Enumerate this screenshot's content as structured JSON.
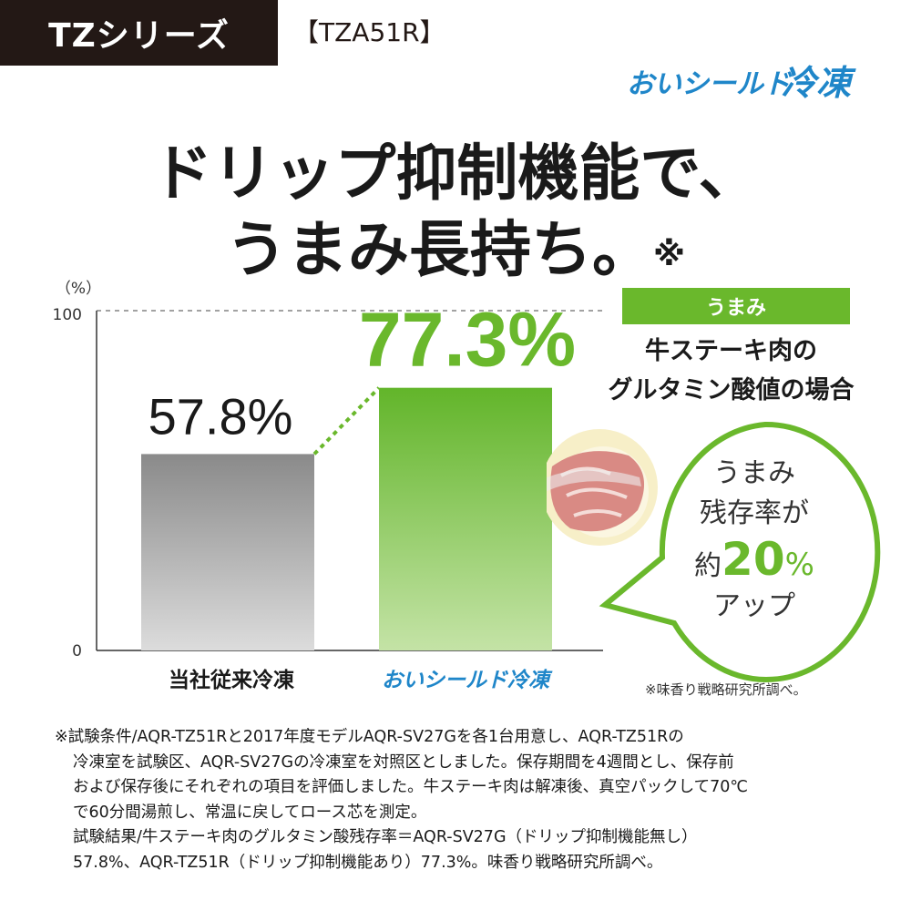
{
  "header": {
    "series_label": "TZシリーズ",
    "model_label": "【TZA51R】"
  },
  "brand": {
    "logo_text_left": "おいシールド",
    "logo_text_right": "冷凍",
    "logo_color": "#1f86c9"
  },
  "headline": {
    "line1": "ドリップ抑制機能で、",
    "line2": "うまみ長持ち。",
    "note_mark": "※"
  },
  "chart_data": {
    "type": "bar",
    "categories": [
      "当社従来冷凍",
      "おいシールド冷凍"
    ],
    "values": [
      57.8,
      77.3
    ],
    "data_labels": [
      "57.8%",
      "77.3%"
    ],
    "ylabel": "（%）",
    "ylim": [
      0,
      100
    ],
    "yticks": [
      "0",
      "100"
    ],
    "grid": false,
    "colors": [
      "#8c8c8c",
      "#6ab82c"
    ]
  },
  "umami": {
    "tag": "うまみ",
    "desc_line1": "牛ステーキ肉の",
    "desc_line2": "グルタミン酸値の場合"
  },
  "callout": {
    "line1": "うまみ",
    "line2": "残存率が",
    "prefix": "約",
    "value": "20",
    "unit": "%",
    "line4": "アップ",
    "border_color": "#6ab82c"
  },
  "source_note": "※味香り戦略研究所調べ。",
  "footnote": {
    "line1": "※試験条件/AQR-TZ51Rと2017年度モデルAQR-SV27Gを各1台用意し、AQR-TZ51Rの",
    "line2": "冷凍室を試験区、AQR-SV27Gの冷凍室を対照区としました。保存期間を4週間とし、保存前",
    "line3": "および保存後にそれぞれの項目を評価しました。牛ステーキ肉は解凍後、真空パックして70℃",
    "line4": "で60分間湯煎し、常温に戻してロース芯を測定。",
    "line5": "試験結果/牛ステーキ肉のグルタミン酸残存率＝AQR-SV27G（ドリップ抑制機能無し）",
    "line6": "57.8%、AQR-TZ51R（ドリップ抑制機能あり）77.3%。味香り戦略研究所調べ。"
  }
}
